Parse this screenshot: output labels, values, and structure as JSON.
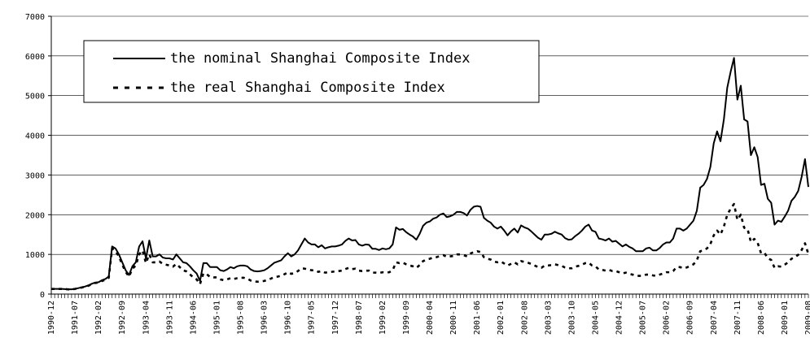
{
  "chart_data": {
    "type": "line",
    "legend": "upper-left",
    "grid": true,
    "ylim": [
      0,
      7000
    ],
    "yticks": [
      0,
      1000,
      2000,
      3000,
      4000,
      5000,
      6000,
      7000
    ],
    "categories": [
      "1990-12",
      null,
      null,
      null,
      null,
      null,
      null,
      "1991-07",
      null,
      null,
      null,
      null,
      null,
      null,
      "1992-02",
      null,
      null,
      null,
      null,
      null,
      null,
      "1992-09",
      null,
      null,
      null,
      null,
      null,
      null,
      "1993-04",
      null,
      null,
      null,
      null,
      null,
      null,
      "1993-11",
      null,
      null,
      null,
      null,
      null,
      null,
      "1994-06",
      null,
      null,
      null,
      null,
      null,
      null,
      "1995-01",
      null,
      null,
      null,
      null,
      null,
      null,
      "1995-08",
      null,
      null,
      null,
      null,
      null,
      null,
      "1996-03",
      null,
      null,
      null,
      null,
      null,
      null,
      "1996-10",
      null,
      null,
      null,
      null,
      null,
      null,
      "1997-05",
      null,
      null,
      null,
      null,
      null,
      null,
      "1997-12",
      null,
      null,
      null,
      null,
      null,
      null,
      "1998-07",
      null,
      null,
      null,
      null,
      null,
      null,
      "1999-02",
      null,
      null,
      null,
      null,
      null,
      null,
      "1999-09",
      null,
      null,
      null,
      null,
      null,
      null,
      "2000-04",
      null,
      null,
      null,
      null,
      null,
      null,
      "2000-11",
      null,
      null,
      null,
      null,
      null,
      null,
      "2001-06",
      null,
      null,
      null,
      null,
      null,
      null,
      "2002-01",
      null,
      null,
      null,
      null,
      null,
      null,
      "2002-08",
      null,
      null,
      null,
      null,
      null,
      null,
      "2003-03",
      null,
      null,
      null,
      null,
      null,
      null,
      "2003-10",
      null,
      null,
      null,
      null,
      null,
      null,
      "2004-05",
      null,
      null,
      null,
      null,
      null,
      null,
      "2004-12",
      null,
      null,
      null,
      null,
      null,
      null,
      "2005-07",
      null,
      null,
      null,
      null,
      null,
      null,
      "2006-02",
      null,
      null,
      null,
      null,
      null,
      null,
      "2006-09",
      null,
      null,
      null,
      null,
      null,
      null,
      "2007-04",
      null,
      null,
      null,
      null,
      null,
      null,
      "2007-11",
      null,
      null,
      null,
      null,
      null,
      null,
      "2008-06",
      null,
      null,
      null,
      null,
      null,
      null,
      "2009-01",
      null,
      null,
      null,
      null,
      null,
      null,
      "2009-08"
    ],
    "series": [
      {
        "name": "the nominal Shanghai Composite Index",
        "color": "#000000",
        "dash": "solid",
        "values": [
          130,
          130,
          130,
          130,
          125,
          120,
          120,
          130,
          150,
          170,
          190,
          220,
          260,
          290,
          300,
          350,
          380,
          440,
          1200,
          1150,
          1000,
          800,
          600,
          480,
          700,
          800,
          1200,
          1330,
          900,
          1350,
          950,
          950,
          1000,
          920,
          900,
          900,
          870,
          1000,
          900,
          800,
          780,
          700,
          600,
          520,
          330,
          780,
          780,
          680,
          680,
          680,
          600,
          580,
          620,
          680,
          650,
          700,
          720,
          720,
          700,
          620,
          580,
          570,
          580,
          600,
          650,
          720,
          790,
          820,
          850,
          950,
          1030,
          950,
          1000,
          1100,
          1250,
          1400,
          1300,
          1250,
          1250,
          1180,
          1230,
          1150,
          1180,
          1200,
          1200,
          1220,
          1250,
          1340,
          1400,
          1350,
          1360,
          1250,
          1220,
          1250,
          1240,
          1140,
          1140,
          1110,
          1150,
          1130,
          1150,
          1250,
          1680,
          1620,
          1640,
          1560,
          1500,
          1450,
          1370,
          1520,
          1720,
          1800,
          1830,
          1900,
          1930,
          2000,
          2030,
          1940,
          1960,
          2000,
          2070,
          2070,
          2040,
          1980,
          2120,
          2200,
          2220,
          2200,
          1920,
          1850,
          1800,
          1700,
          1650,
          1700,
          1600,
          1480,
          1580,
          1650,
          1550,
          1730,
          1680,
          1650,
          1580,
          1500,
          1420,
          1370,
          1500,
          1500,
          1520,
          1570,
          1530,
          1500,
          1410,
          1370,
          1380,
          1460,
          1520,
          1600,
          1700,
          1750,
          1600,
          1570,
          1400,
          1380,
          1350,
          1400,
          1320,
          1340,
          1270,
          1200,
          1250,
          1190,
          1150,
          1080,
          1080,
          1080,
          1150,
          1170,
          1100,
          1100,
          1160,
          1250,
          1300,
          1300,
          1400,
          1650,
          1650,
          1600,
          1650,
          1750,
          1850,
          2100,
          2680,
          2750,
          2900,
          3200,
          3800,
          4100,
          3850,
          4400,
          5200,
          5600,
          5950,
          4900,
          5250,
          4400,
          4350,
          3500,
          3700,
          3450,
          2750,
          2780,
          2400,
          2300,
          1750,
          1850,
          1820,
          1950,
          2100,
          2350,
          2450,
          2600,
          2950,
          3400,
          2700
        ]
      },
      {
        "name": "the real Shanghai Composite Index",
        "color": "#000000",
        "dash": "dashed",
        "values": [
          130,
          130,
          130,
          130,
          125,
          120,
          120,
          130,
          150,
          165,
          185,
          210,
          250,
          280,
          290,
          330,
          360,
          410,
          1150,
          1080,
          950,
          740,
          560,
          440,
          640,
          720,
          1000,
          1100,
          780,
          1000,
          800,
          800,
          820,
          760,
          740,
          720,
          690,
          760,
          680,
          600,
          570,
          500,
          420,
          370,
          250,
          520,
          500,
          430,
          420,
          420,
          370,
          350,
          370,
          400,
          380,
          400,
          410,
          410,
          390,
          340,
          320,
          310,
          320,
          330,
          360,
          390,
          430,
          440,
          460,
          500,
          550,
          510,
          530,
          580,
          650,
          640,
          620,
          600,
          600,
          560,
          580,
          540,
          550,
          560,
          570,
          580,
          590,
          630,
          660,
          630,
          640,
          590,
          580,
          590,
          590,
          540,
          540,
          530,
          550,
          540,
          550,
          600,
          800,
          780,
          790,
          750,
          720,
          700,
          660,
          730,
          830,
          870,
          890,
          920,
          930,
          960,
          980,
          940,
          950,
          960,
          1000,
          1000,
          980,
          950,
          1020,
          1060,
          1080,
          1060,
          930,
          890,
          870,
          820,
          800,
          820,
          770,
          720,
          760,
          800,
          750,
          830,
          810,
          790,
          760,
          720,
          680,
          660,
          720,
          720,
          730,
          750,
          730,
          710,
          670,
          650,
          650,
          690,
          710,
          740,
          780,
          790,
          720,
          700,
          620,
          610,
          590,
          610,
          580,
          580,
          550,
          520,
          540,
          510,
          490,
          460,
          460,
          460,
          490,
          490,
          470,
          460,
          490,
          520,
          550,
          550,
          580,
          680,
          680,
          650,
          670,
          710,
          750,
          850,
          1080,
          1100,
          1150,
          1260,
          1480,
          1600,
          1500,
          1700,
          2000,
          2150,
          2270,
          1870,
          2000,
          1670,
          1640,
          1310,
          1390,
          1290,
          1030,
          1040,
          900,
          860,
          660,
          700,
          690,
          740,
          800,
          890,
          930,
          990,
          1110,
          1280,
          1010
        ]
      }
    ]
  }
}
